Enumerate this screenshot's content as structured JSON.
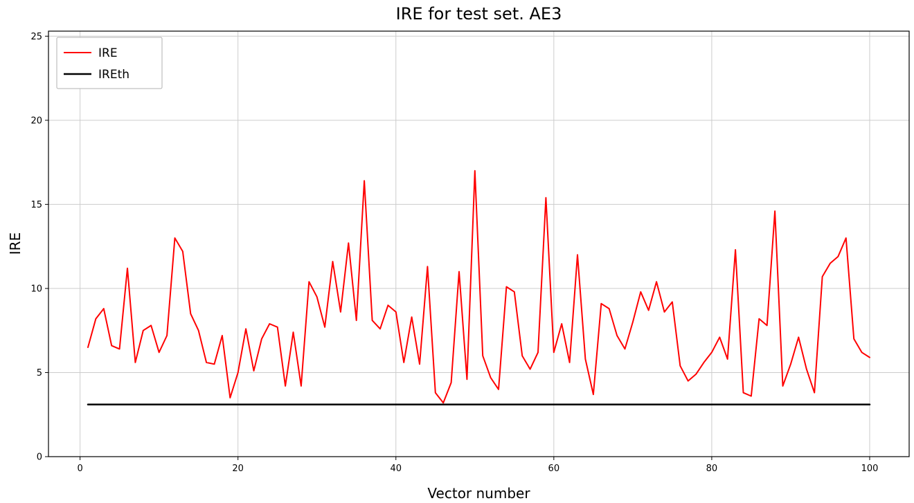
{
  "chart_data": {
    "type": "line",
    "title": "IRE for test set. AE3",
    "xlabel": "Vector number",
    "ylabel": "IRE",
    "x_start": 1,
    "xlim": [
      -4,
      105
    ],
    "ylim": [
      0,
      25.3
    ],
    "xticks": [
      0,
      20,
      40,
      60,
      80,
      100
    ],
    "yticks": [
      0,
      5,
      10,
      15,
      20,
      25
    ],
    "grid": true,
    "legend_position": "upper-left",
    "colors": {
      "grid": "#cccccc",
      "axis": "#000000",
      "background": "#ffffff",
      "ire_line": "#ff0000",
      "ireth_line": "#000000"
    },
    "series": [
      {
        "name": "IRE",
        "color": "#ff0000",
        "width": 2,
        "values": [
          6.5,
          8.2,
          8.8,
          6.6,
          6.4,
          11.2,
          5.6,
          7.5,
          7.8,
          6.2,
          7.2,
          13.0,
          12.2,
          8.5,
          7.5,
          5.6,
          5.5,
          7.2,
          3.5,
          5.0,
          7.6,
          5.1,
          7.0,
          7.9,
          7.7,
          4.2,
          7.4,
          4.2,
          10.4,
          9.5,
          7.7,
          11.6,
          8.6,
          12.7,
          8.1,
          16.4,
          8.1,
          7.6,
          9.0,
          8.6,
          5.6,
          8.3,
          5.5,
          11.3,
          3.8,
          3.2,
          4.4,
          11.0,
          4.6,
          17.0,
          6.0,
          4.7,
          4.0,
          10.1,
          9.8,
          6.0,
          5.2,
          6.2,
          15.4,
          6.2,
          7.9,
          5.6,
          12.0,
          5.8,
          3.7,
          9.1,
          8.8,
          7.2,
          6.4,
          8.0,
          9.8,
          8.7,
          10.4,
          8.6,
          9.2,
          5.4,
          4.5,
          4.9,
          5.6,
          6.2,
          7.1,
          5.8,
          12.3,
          3.8,
          3.6,
          8.2,
          7.8,
          14.6,
          4.2,
          5.5,
          7.1,
          5.2,
          3.8,
          10.7,
          11.5,
          11.9,
          13.0,
          7.0,
          6.2,
          5.9
        ]
      },
      {
        "name": "IREth",
        "color": "#000000",
        "width": 2.5,
        "constant": 3.1,
        "x_range": [
          1,
          100
        ]
      }
    ]
  }
}
